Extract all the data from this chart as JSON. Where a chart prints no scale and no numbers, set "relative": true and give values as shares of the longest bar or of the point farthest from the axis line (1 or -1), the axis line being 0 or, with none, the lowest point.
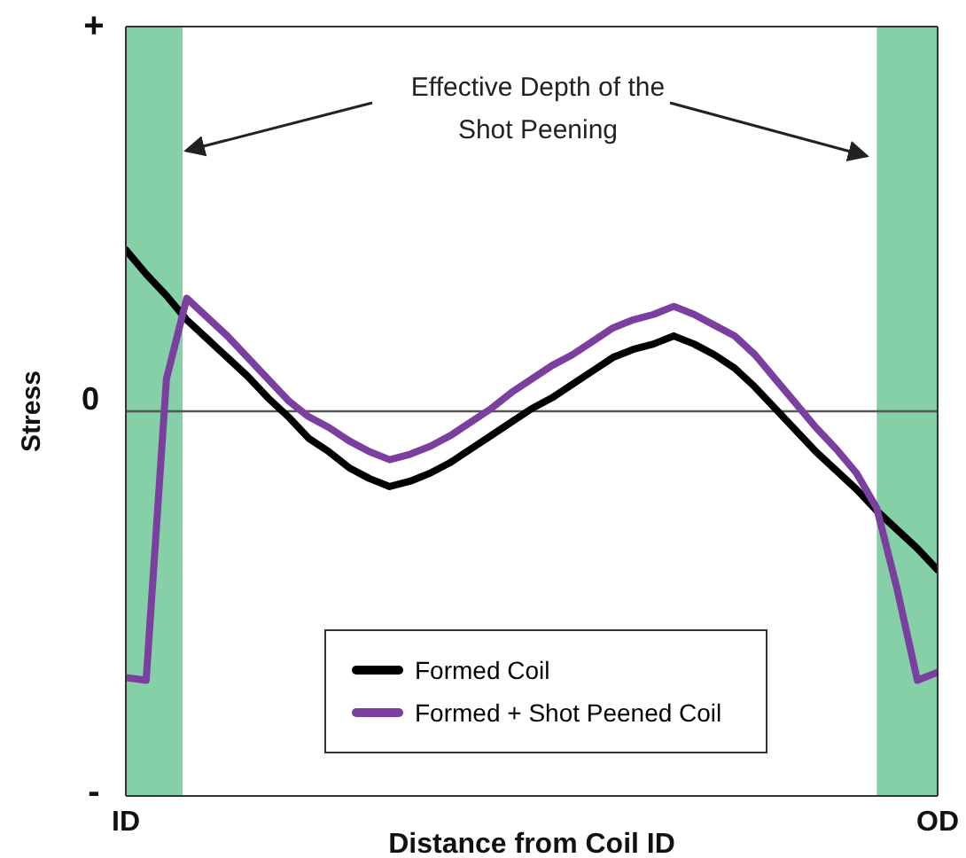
{
  "chart_data": {
    "type": "line",
    "relative": true,
    "xlabel": "Distance from Coil ID",
    "ylabel": "Stress",
    "categories": [
      "ID",
      null,
      null,
      null,
      null,
      null,
      null,
      null,
      null,
      null,
      null,
      null,
      null,
      null,
      null,
      null,
      null,
      null,
      null,
      null,
      null,
      null,
      null,
      null,
      null,
      null,
      null,
      null,
      null,
      null,
      null,
      null,
      null,
      null,
      null,
      null,
      null,
      null,
      null,
      null,
      "OD"
    ],
    "tick_labels": "x",
    "series": [
      {
        "name": "Formed Coil",
        "color": "#000000",
        "values": [
          0.6,
          0.51,
          0.43,
          0.34,
          0.27,
          0.2,
          0.13,
          0.05,
          -0.02,
          -0.1,
          -0.15,
          -0.21,
          -0.25,
          -0.28,
          -0.26,
          -0.23,
          -0.19,
          -0.14,
          -0.09,
          -0.04,
          0.01,
          0.05,
          0.1,
          0.15,
          0.2,
          0.23,
          0.25,
          0.28,
          0.25,
          0.21,
          0.16,
          0.09,
          0.01,
          -0.07,
          -0.15,
          -0.22,
          -0.29,
          -0.37,
          -0.44,
          -0.51,
          -0.59
        ]
      },
      {
        "name": "Formed + Shot Peened Coil",
        "color": "#7b3fa0",
        "values": [
          -0.99,
          -1,
          0.12,
          0.42,
          0.35,
          0.28,
          0.2,
          0.12,
          0.04,
          -0.02,
          -0.06,
          -0.11,
          -0.15,
          -0.18,
          -0.16,
          -0.13,
          -0.09,
          -0.04,
          0.01,
          0.07,
          0.12,
          0.17,
          0.21,
          0.26,
          0.31,
          0.34,
          0.36,
          0.39,
          0.36,
          0.32,
          0.28,
          0.21,
          0.12,
          0.03,
          -0.06,
          -0.14,
          -0.23,
          -0.36,
          -0.66,
          -1,
          -0.97
        ]
      }
    ],
    "annotations": [
      "Effective Depth of the Shot Peening",
      "+",
      "0",
      "-"
    ],
    "legend": "bottom",
    "line_style": "solid"
  }
}
